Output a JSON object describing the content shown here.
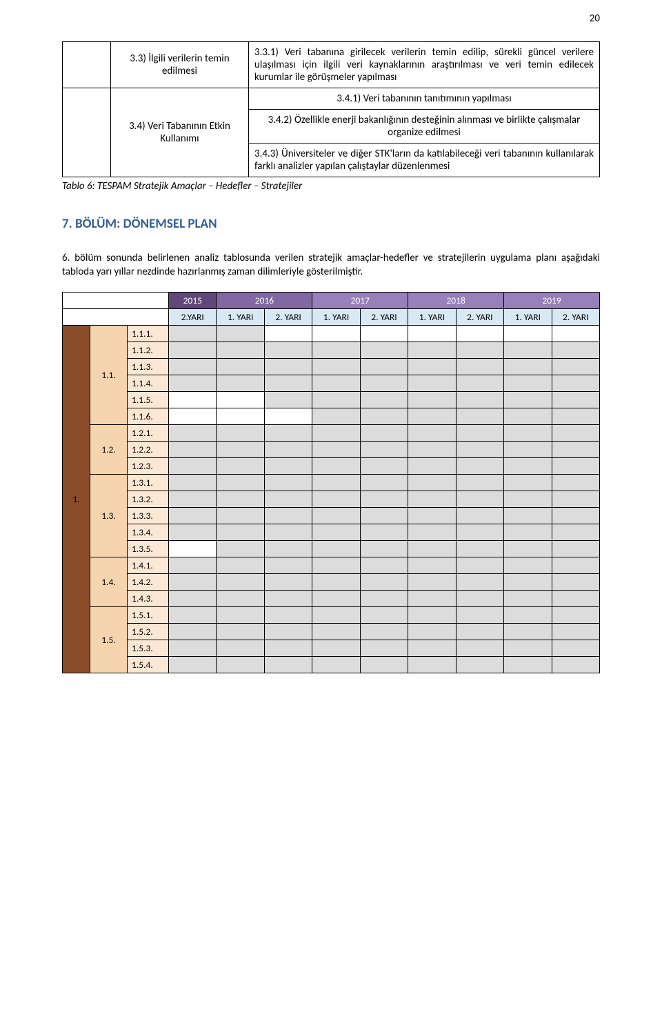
{
  "page_number": "20",
  "top_table": {
    "row1_c2": "3.3) İlgili verilerin temin edilmesi",
    "row1_c3": "3.3.1) Veri tabanına girilecek verilerin temin edilip, sürekli güncel verilere ulaşılması için ilgili veri kaynaklarının araştırılması ve veri temin edilecek kurumlar ile görüşmeler yapılması",
    "row2_c3": "3.4.1) Veri tabanının tanıtımının yapılması",
    "row34_c2": "3.4) Veri Tabanının Etkin Kullanımı",
    "row3_c3": "3.4.2) Özellikle enerji bakanlığının desteğinin alınması ve birlikte çalışmalar organize edilmesi",
    "row4_c3": "3.4.3) Üniversiteler ve diğer STK'ların da katılabileceği veri tabanının kullanılarak farklı analizler yapılan çalıştaylar düzenlenmesi"
  },
  "caption": "Tablo 6: TESPAM Stratejik Amaçlar – Hedefler – Stratejiler",
  "section_heading": "7. BÖLÜM: DÖNEMSEL PLAN",
  "body_text": "6. bölüm sonunda belirlenen analiz tablosunda verilen stratejik amaçlar-hedefler ve stratejilerin uygulama planı aşağıdaki tabloda yarı yıllar nezdinde hazırlanmış zaman dilimleriyle gösterilmiştir.",
  "gantt": {
    "years": [
      {
        "label": "2015",
        "span": 1,
        "bg": "#5f4879"
      },
      {
        "label": "2016",
        "span": 2,
        "bg": "#8168a0"
      },
      {
        "label": "2017",
        "span": 2,
        "bg": "#9880b8"
      },
      {
        "label": "2018",
        "span": 2,
        "bg": "#9880b8"
      },
      {
        "label": "2019",
        "span": 2,
        "bg": "#9880b8"
      }
    ],
    "half_headers": [
      "2.YARI",
      "1. YARI",
      "2. YARI",
      "1. YARI",
      "2. YARI",
      "1. YARI",
      "2. YARI",
      "1. YARI",
      "2. YARI"
    ],
    "half_header_bg": "#d9e8f5",
    "group_label": "1.",
    "group_bg": "#8b4c2a",
    "subgroups": [
      {
        "label": "1.1.",
        "bg": "#f6d4ae",
        "rows": [
          {
            "label": "1.1.1.",
            "cells": [
              1,
              1,
              0,
              0,
              0,
              0,
              0,
              0,
              0
            ]
          },
          {
            "label": "1.1.2.",
            "cells": [
              1,
              1,
              1,
              1,
              1,
              1,
              1,
              1,
              1
            ]
          },
          {
            "label": "1.1.3.",
            "cells": [
              1,
              1,
              1,
              1,
              1,
              1,
              1,
              1,
              1
            ]
          },
          {
            "label": "1.1.4.",
            "cells": [
              1,
              1,
              1,
              1,
              1,
              1,
              1,
              1,
              1
            ]
          },
          {
            "label": "1.1.5.",
            "cells": [
              0,
              0,
              1,
              1,
              1,
              1,
              1,
              1,
              1
            ]
          },
          {
            "label": "1.1.6.",
            "cells": [
              0,
              0,
              0,
              1,
              1,
              1,
              1,
              1,
              1
            ]
          }
        ]
      },
      {
        "label": "1.2.",
        "bg": "#f6d4ae",
        "rows": [
          {
            "label": "1.2.1.",
            "cells": [
              1,
              1,
              1,
              1,
              1,
              1,
              1,
              1,
              1
            ]
          },
          {
            "label": "1.2.2.",
            "cells": [
              1,
              1,
              1,
              1,
              1,
              1,
              1,
              1,
              1
            ]
          },
          {
            "label": "1.2.3.",
            "cells": [
              1,
              1,
              1,
              1,
              1,
              1,
              1,
              1,
              1
            ]
          }
        ]
      },
      {
        "label": "1.3.",
        "bg": "#f6d4ae",
        "rows": [
          {
            "label": "1.3.1.",
            "cells": [
              1,
              1,
              1,
              1,
              1,
              1,
              1,
              1,
              1
            ]
          },
          {
            "label": "1.3.2.",
            "cells": [
              1,
              1,
              1,
              1,
              1,
              1,
              1,
              1,
              1
            ]
          },
          {
            "label": "1.3.3.",
            "cells": [
              1,
              1,
              1,
              1,
              1,
              1,
              1,
              1,
              1
            ]
          },
          {
            "label": "1.3.4.",
            "cells": [
              1,
              1,
              1,
              1,
              1,
              1,
              1,
              1,
              1
            ]
          },
          {
            "label": "1.3.5.",
            "cells": [
              0,
              1,
              1,
              1,
              1,
              1,
              1,
              1,
              1
            ]
          }
        ]
      },
      {
        "label": "1.4.",
        "bg": "#f6d4ae",
        "rows": [
          {
            "label": "1.4.1.",
            "cells": [
              1,
              1,
              1,
              1,
              1,
              1,
              1,
              1,
              1
            ]
          },
          {
            "label": "1.4.2.",
            "cells": [
              1,
              1,
              1,
              1,
              1,
              1,
              1,
              1,
              1
            ]
          },
          {
            "label": "1.4.3.",
            "cells": [
              1,
              1,
              1,
              1,
              1,
              1,
              1,
              1,
              1
            ]
          }
        ]
      },
      {
        "label": "1.5.",
        "bg": "#f6d4ae",
        "rows": [
          {
            "label": "1.5.1.",
            "cells": [
              1,
              1,
              1,
              1,
              1,
              1,
              1,
              1,
              1
            ]
          },
          {
            "label": "1.5.2.",
            "cells": [
              1,
              1,
              1,
              1,
              1,
              1,
              1,
              1,
              1
            ]
          },
          {
            "label": "1.5.3.",
            "cells": [
              1,
              1,
              1,
              1,
              1,
              1,
              1,
              1,
              1
            ]
          },
          {
            "label": "1.5.4.",
            "cells": [
              1,
              1,
              1,
              1,
              1,
              1,
              1,
              1,
              1
            ]
          }
        ]
      }
    ],
    "task_label_bg": "#fbe8d4"
  }
}
